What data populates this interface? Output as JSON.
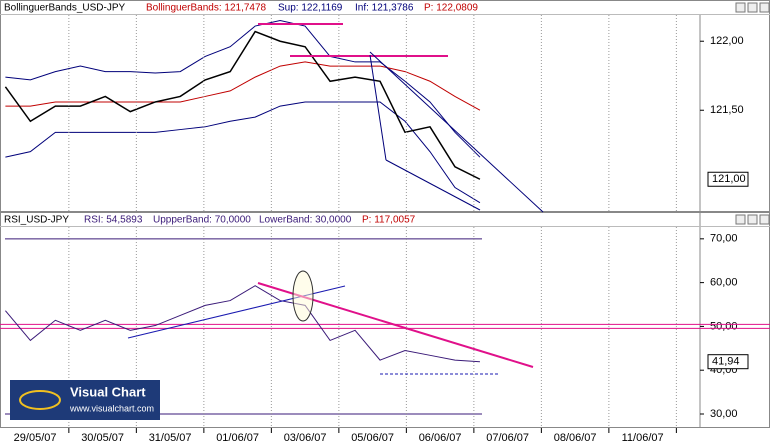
{
  "chart_data": [
    {
      "type": "line",
      "title": "BollinguerBands_USD-JPY",
      "header": [
        "BollinguerBands: 121,7478",
        "Sup: 122,1169",
        "Inf: 121,3786",
        "P: 122,0809"
      ],
      "x": [
        -0.44,
        -0.07,
        0.3,
        0.67,
        1.04,
        1.41,
        1.78,
        2.15,
        2.52,
        2.89,
        3.26,
        3.63,
        4.0,
        4.37,
        4.74,
        5.11,
        5.48,
        5.85,
        6.22,
        6.59
      ],
      "series": [
        {
          "name": "Sup",
          "color": "#00007a",
          "values": [
            121.74,
            121.72,
            121.78,
            121.82,
            121.78,
            121.78,
            121.77,
            121.78,
            121.89,
            121.96,
            122.11,
            122.15,
            122.11,
            121.89,
            121.85,
            121.85,
            121.71,
            121.56,
            121.34,
            121.16
          ]
        },
        {
          "name": "BollinguerBands",
          "color": "#c00000",
          "values": [
            121.53,
            121.53,
            121.56,
            121.56,
            121.56,
            121.56,
            121.56,
            121.56,
            121.6,
            121.64,
            121.74,
            121.82,
            121.85,
            121.82,
            121.82,
            121.82,
            121.78,
            121.71,
            121.6,
            121.5
          ]
        },
        {
          "name": "Inf",
          "color": "#00007a",
          "values": [
            121.16,
            121.2,
            121.34,
            121.34,
            121.34,
            121.34,
            121.34,
            121.36,
            121.38,
            121.42,
            121.45,
            121.53,
            121.56,
            121.56,
            121.56,
            121.56,
            121.42,
            121.2,
            120.94,
            120.83
          ]
        },
        {
          "name": "USD-JPY",
          "color": "#000000",
          "values": [
            121.67,
            121.42,
            121.53,
            121.53,
            121.6,
            121.49,
            121.56,
            121.6,
            121.72,
            121.78,
            122.07,
            122.0,
            121.96,
            121.71,
            121.74,
            121.71,
            121.34,
            121.38,
            121.09,
            121.0
          ],
          "value_labels": [
            null,
            null,
            null,
            null,
            null,
            null,
            null,
            null,
            null,
            null,
            null,
            null,
            null,
            null,
            null,
            null,
            null,
            null,
            null,
            "121,00"
          ]
        }
      ],
      "ylim": [
        120.77,
        122.19
      ],
      "yticks": [
        {
          "value": 121.5,
          "label": "121,50"
        },
        {
          "value": 122,
          "label": "122,00"
        }
      ],
      "xlim": [
        -0.52,
        9.85
      ]
    },
    {
      "type": "line",
      "title": "RSI_USD-JPY",
      "header": [
        "RSI: 54,5893",
        "UppperBand: 70,0000",
        "LowerBand: 30,0000",
        "P: 117,0057"
      ],
      "x": [
        -0.44,
        -0.07,
        0.3,
        0.67,
        1.04,
        1.41,
        1.78,
        2.15,
        2.52,
        2.89,
        3.26,
        3.63,
        4.0,
        4.37,
        4.74,
        5.11,
        5.48,
        5.85,
        6.22,
        6.59
      ],
      "series": [
        {
          "name": "RSI",
          "color": "#3a1a78",
          "values": [
            53.6,
            46.8,
            51.4,
            49.1,
            51.4,
            49.1,
            50.2,
            52.5,
            54.8,
            55.9,
            59.3,
            55.9,
            54.8,
            46.8,
            49.1,
            42.3,
            44.5,
            43.4,
            42.3,
            41.94
          ],
          "value_labels": [
            null,
            null,
            null,
            null,
            null,
            null,
            null,
            null,
            null,
            null,
            null,
            null,
            null,
            null,
            null,
            null,
            null,
            null,
            null,
            "41,94"
          ]
        }
      ],
      "bands": [
        70,
        50,
        30
      ],
      "ylim": [
        26.8,
        72.7
      ],
      "yticks": [
        {
          "value": 30,
          "label": "30,00"
        },
        {
          "value": 40,
          "label": "40,00"
        },
        {
          "value": 50,
          "label": "50,00"
        },
        {
          "value": 60,
          "label": "60,00"
        },
        {
          "value": 70,
          "label": "70,00"
        }
      ],
      "xlim": [
        -0.52,
        9.85
      ],
      "xticks": [
        {
          "value": 0,
          "label": "29/05/07"
        },
        {
          "value": 1,
          "label": "30/05/07"
        },
        {
          "value": 2,
          "label": "31/05/07"
        },
        {
          "value": 3,
          "label": "01/06/07"
        },
        {
          "value": 4,
          "label": "03/06/07"
        },
        {
          "value": 5,
          "label": "05/06/07"
        },
        {
          "value": 6,
          "label": "06/06/07"
        },
        {
          "value": 7,
          "label": "07/06/07"
        },
        {
          "value": 8,
          "label": "08/06/07"
        },
        {
          "value": 9,
          "label": "11/06/07"
        }
      ]
    }
  ],
  "watermark": {
    "title": "Visual Chart",
    "url": "www.visualchart.com"
  }
}
